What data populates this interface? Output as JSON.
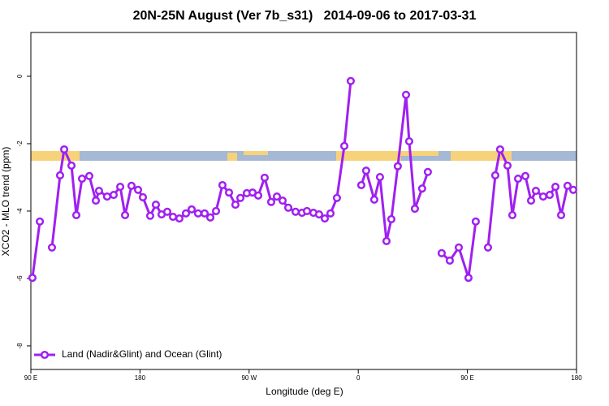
{
  "chart_data": {
    "type": "line",
    "title": "20N-25N August (Ver 7b_s31)   2014-09-06 to 2017-03-31",
    "x_label": "Longitude (deg E)",
    "y_label": "XCO2 - MLO trend (ppm)",
    "xlim": [
      90,
      540
    ],
    "ylim": [
      -8.7,
      1.3
    ],
    "xticks": [
      {
        "value": 90,
        "label": "90 E"
      },
      180,
      {
        "value": 270,
        "label": "90 W"
      },
      {
        "value": 360,
        "label": "0"
      },
      {
        "value": 450,
        "label": "90 E"
      },
      {
        "value": 540,
        "label": "180"
      }
    ],
    "yticks": [
      0,
      -2,
      -4,
      -6,
      -8
    ],
    "legend": "bottomleft",
    "x": [
      91.3,
      97.4,
      102.4,
      107.4,
      114.1,
      117.5,
      123.5,
      127.5,
      132.2,
      138.2,
      143.6,
      146.2,
      152.9,
      158.3,
      163.7,
      167.7,
      173.0,
      178.4,
      182.4,
      188.4,
      193.1,
      197.8,
      202.5,
      207.2,
      212.5,
      217.9,
      222.6,
      227.9,
      233.3,
      238.0,
      242.7,
      248.0,
      253.4,
      258.7,
      262.8,
      268.1,
      272.8,
      277.5,
      282.8,
      288.2,
      292.9,
      297.6,
      302.3,
      308.3,
      313.6,
      317.7,
      323.0,
      327.7,
      332.4,
      337.1,
      342.4,
      348.5,
      353.8,
      357.8,
      362.5,
      366.5,
      373.2,
      377.9,
      383.3,
      387.3,
      392.6,
      399.4,
      402.0,
      406.7,
      412.7,
      417.4,
      422.8,
      428.8,
      435.5,
      442.9,
      450.9,
      456.9,
      461.6,
      467.0,
      473.0,
      477.0,
      483.1,
      487.1,
      491.8,
      497.8,
      502.5,
      506.5,
      512.5,
      517.9,
      522.6,
      527.3,
      532.6,
      537.3
    ],
    "series": [
      {
        "name": "Land (Nadir&Glint) and Ocean (Glint)",
        "color": "#a020f0",
        "values": [
          -5.98,
          -4.31,
          null,
          -5.08,
          -2.94,
          -2.17,
          -2.65,
          -4.12,
          -3.04,
          -2.96,
          -3.69,
          -3.4,
          -3.57,
          -3.52,
          -3.28,
          -4.12,
          -3.25,
          -3.37,
          -3.59,
          -4.14,
          -3.81,
          -4.1,
          -4.02,
          -4.17,
          -4.22,
          -4.07,
          -3.95,
          -4.07,
          -4.07,
          -4.19,
          -4.0,
          -3.23,
          -3.45,
          -3.81,
          -3.61,
          -3.47,
          -3.45,
          -3.54,
          -3.01,
          -3.73,
          -3.57,
          -3.69,
          -3.9,
          -4.02,
          -4.05,
          -4.0,
          -4.05,
          -4.1,
          -4.22,
          -4.07,
          -3.61,
          -2.07,
          -0.14,
          null,
          -3.23,
          -2.8,
          -3.66,
          -2.99,
          -4.89,
          -4.24,
          -2.67,
          -0.55,
          -1.93,
          -3.93,
          -3.33,
          -2.84,
          null,
          -5.25,
          -5.47,
          -5.08,
          -5.98,
          -4.31,
          null,
          -5.08,
          -2.94,
          -2.17,
          -2.65,
          -4.12,
          -3.04,
          -2.96,
          -3.69,
          -3.4,
          -3.57,
          -3.52,
          -3.28,
          -4.12,
          -3.25,
          -3.37
        ]
      }
    ]
  }
}
